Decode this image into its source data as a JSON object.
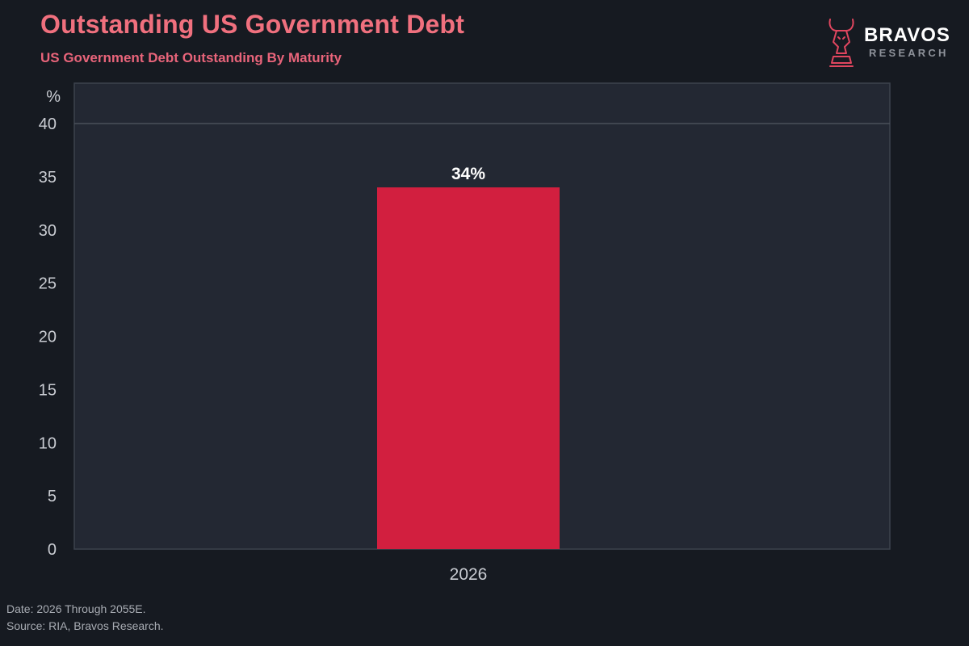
{
  "header": {
    "title": "Outstanding US Government Debt",
    "subtitle": "US Government Debt Outstanding By Maturity"
  },
  "logo": {
    "name": "BRAVOS",
    "sub": "RESEARCH",
    "icon": "bull-knight-icon"
  },
  "footer": {
    "date_note": "Date: 2026 Through 2055E.",
    "source_note": "Source: RIA, Bravos Research."
  },
  "colors": {
    "background": "#161a21",
    "plot_background": "#232833",
    "bar": "#d21f3f",
    "title": "#f0707e",
    "accent": "#e8647a"
  },
  "chart_data": {
    "type": "bar",
    "title": "Outstanding US Government Debt",
    "subtitle": "US Government Debt Outstanding By Maturity",
    "ylabel": "%",
    "xlabel": "",
    "categories": [
      "2026"
    ],
    "values": [
      34
    ],
    "data_labels": [
      "34%"
    ],
    "ylim": [
      0,
      40
    ],
    "yticks": [
      0,
      5,
      10,
      15,
      20,
      25,
      30,
      35,
      40
    ],
    "grid": false
  }
}
